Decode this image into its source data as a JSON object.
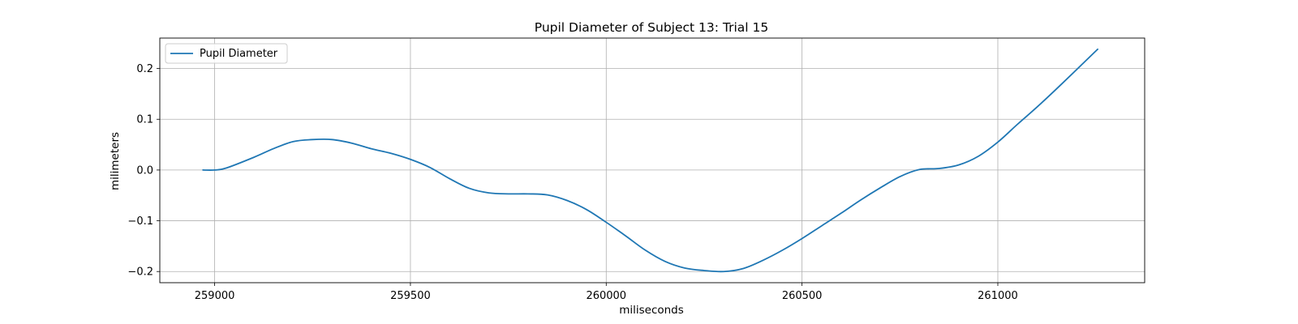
{
  "chart_data": {
    "type": "line",
    "title": "Pupil Diameter of Subject 13: Trial 15",
    "xlabel": "miliseconds",
    "ylabel": "milimeters",
    "xlim": [
      258860,
      261375
    ],
    "ylim": [
      -0.222,
      0.26
    ],
    "xticks": [
      259000,
      259500,
      260000,
      260500,
      261000
    ],
    "xtick_labels": [
      "259000",
      "259500",
      "260000",
      "260500",
      "261000"
    ],
    "yticks": [
      -0.2,
      -0.1,
      0.0,
      0.1,
      0.2
    ],
    "ytick_labels": [
      "−0.2",
      "−0.1",
      "0.0",
      "0.1",
      "0.2"
    ],
    "grid": true,
    "legend_position": "top-left",
    "series": [
      {
        "name": "Pupil Diameter",
        "color": "#1f77b4",
        "x": [
          258970,
          259000,
          259030,
          259100,
          259150,
          259200,
          259250,
          259300,
          259350,
          259400,
          259450,
          259500,
          259550,
          259600,
          259650,
          259700,
          259750,
          259800,
          259850,
          259900,
          259950,
          260000,
          260050,
          260100,
          260150,
          260200,
          260250,
          260300,
          260350,
          260400,
          260450,
          260500,
          260550,
          260600,
          260650,
          260700,
          260750,
          260800,
          260850,
          260900,
          260950,
          261000,
          261050,
          261100,
          261150,
          261200,
          261255
        ],
        "y": [
          0.0,
          0.0,
          0.004,
          0.025,
          0.042,
          0.056,
          0.06,
          0.06,
          0.053,
          0.042,
          0.033,
          0.021,
          0.005,
          -0.017,
          -0.036,
          -0.045,
          -0.047,
          -0.047,
          -0.049,
          -0.06,
          -0.078,
          -0.103,
          -0.13,
          -0.158,
          -0.18,
          -0.193,
          -0.198,
          -0.2,
          -0.194,
          -0.178,
          -0.158,
          -0.135,
          -0.11,
          -0.085,
          -0.059,
          -0.035,
          -0.013,
          0.001,
          0.003,
          0.01,
          0.027,
          0.055,
          0.09,
          0.124,
          0.16,
          0.197,
          0.238
        ]
      }
    ]
  }
}
